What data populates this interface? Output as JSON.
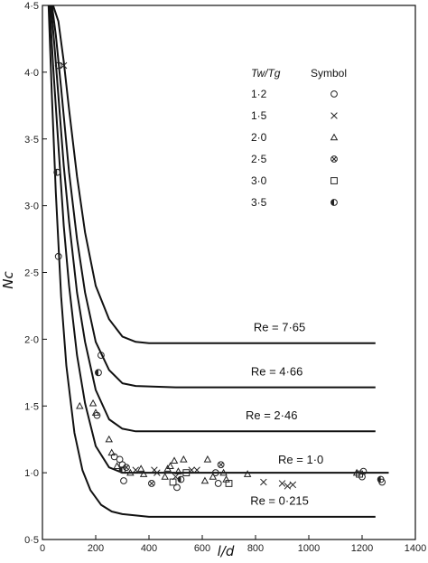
{
  "chart_data": {
    "type": "line",
    "xlabel": "l/d",
    "ylabel": "Nc",
    "xlim": [
      0,
      1400
    ],
    "ylim": [
      0.5,
      4.5
    ],
    "x_ticks": [
      0,
      200,
      400,
      600,
      800,
      1000,
      1200,
      1400
    ],
    "y_ticks": [
      0.5,
      1.0,
      1.5,
      2.0,
      2.5,
      3.0,
      3.5,
      4.0,
      4.5
    ],
    "x_tick_labels": [
      "0",
      "200",
      "400",
      "600",
      "800",
      "1000",
      "1200",
      "1400"
    ],
    "y_tick_labels": [
      "0·5",
      "1·0",
      "1·5",
      "2·0",
      "2·5",
      "3·0",
      "3·5",
      "4·0",
      "4·5"
    ],
    "grid": false,
    "legend_position": "top-right",
    "legend_header_ratio": "Tw/Tg",
    "legend_header_symbol": "Symbol",
    "series": [
      {
        "name": "Re = 7·65",
        "label": "Re = 7·65",
        "asymptote": 1.97,
        "x": [
          40,
          60,
          80,
          100,
          130,
          160,
          200,
          250,
          300,
          350,
          400,
          500,
          800,
          1100,
          1250
        ],
        "y": [
          4.5,
          4.38,
          4.08,
          3.72,
          3.22,
          2.8,
          2.4,
          2.15,
          2.02,
          1.98,
          1.97,
          1.97,
          1.97,
          1.97,
          1.97
        ]
      },
      {
        "name": "Re = 4·66",
        "label": "Re = 4·66",
        "asymptote": 1.64,
        "x": [
          36,
          50,
          70,
          100,
          130,
          160,
          200,
          250,
          300,
          350,
          500,
          800,
          1100,
          1250
        ],
        "y": [
          4.5,
          4.28,
          3.88,
          3.25,
          2.75,
          2.35,
          1.98,
          1.77,
          1.67,
          1.65,
          1.64,
          1.64,
          1.64,
          1.64
        ]
      },
      {
        "name": "Re = 2·46",
        "label": "Re = 2·46",
        "asymptote": 1.31,
        "x": [
          32,
          45,
          60,
          80,
          100,
          130,
          160,
          200,
          250,
          300,
          350,
          500,
          800,
          1100,
          1250
        ],
        "y": [
          4.5,
          4.2,
          3.82,
          3.3,
          2.88,
          2.35,
          1.98,
          1.62,
          1.4,
          1.33,
          1.31,
          1.31,
          1.31,
          1.31,
          1.31
        ]
      },
      {
        "name": "Re = 1·0",
        "label": "Re = 1·0",
        "asymptote": 1.0,
        "x": [
          27,
          40,
          60,
          80,
          100,
          130,
          160,
          200,
          250,
          300,
          350,
          500,
          800,
          1100,
          1300
        ],
        "y": [
          4.5,
          4.05,
          3.45,
          2.85,
          2.4,
          1.88,
          1.52,
          1.2,
          1.04,
          1.0,
          1.0,
          1.0,
          1.0,
          1.0,
          1.0
        ]
      },
      {
        "name": "Re = 0·215",
        "label": "Re = 0·215",
        "asymptote": 0.67,
        "x": [
          23,
          35,
          50,
          70,
          90,
          120,
          150,
          180,
          220,
          260,
          300,
          350,
          400,
          600,
          900,
          1200,
          1250
        ],
        "y": [
          4.5,
          3.85,
          3.1,
          2.32,
          1.8,
          1.3,
          1.02,
          0.87,
          0.76,
          0.71,
          0.69,
          0.68,
          0.67,
          0.67,
          0.67,
          0.67,
          0.67
        ]
      }
    ],
    "legend": [
      {
        "ratio": "1·2",
        "symbol": "circle",
        "symbol_name": "circle-symbol"
      },
      {
        "ratio": "1·5",
        "symbol": "cross",
        "symbol_name": "cross-symbol"
      },
      {
        "ratio": "2·0",
        "symbol": "triangle",
        "symbol_name": "triangle-symbol"
      },
      {
        "ratio": "2·5",
        "symbol": "circle-cross",
        "symbol_name": "circle-x-symbol"
      },
      {
        "ratio": "3·0",
        "symbol": "square",
        "symbol_name": "square-symbol"
      },
      {
        "ratio": "3·5",
        "symbol": "half-circle",
        "symbol_name": "half-filled-circle-symbol"
      }
    ],
    "points": [
      {
        "x": 60,
        "y": 4.05,
        "s": "circle"
      },
      {
        "x": 80,
        "y": 4.05,
        "s": "cross"
      },
      {
        "x": 55,
        "y": 3.25,
        "s": "half-circle"
      },
      {
        "x": 60,
        "y": 2.62,
        "s": "circle"
      },
      {
        "x": 220,
        "y": 1.88,
        "s": "circle"
      },
      {
        "x": 210,
        "y": 1.75,
        "s": "half-circle"
      },
      {
        "x": 140,
        "y": 1.5,
        "s": "triangle"
      },
      {
        "x": 190,
        "y": 1.52,
        "s": "triangle"
      },
      {
        "x": 200,
        "y": 1.45,
        "s": "triangle"
      },
      {
        "x": 205,
        "y": 1.43,
        "s": "circle"
      },
      {
        "x": 250,
        "y": 1.25,
        "s": "triangle"
      },
      {
        "x": 260,
        "y": 1.15,
        "s": "triangle"
      },
      {
        "x": 270,
        "y": 1.12,
        "s": "circle"
      },
      {
        "x": 280,
        "y": 1.05,
        "s": "triangle"
      },
      {
        "x": 290,
        "y": 1.1,
        "s": "circle"
      },
      {
        "x": 300,
        "y": 1.06,
        "s": "circle"
      },
      {
        "x": 300,
        "y": 1.02,
        "s": "half-circle"
      },
      {
        "x": 305,
        "y": 0.94,
        "s": "circle"
      },
      {
        "x": 315,
        "y": 1.04,
        "s": "circle-cross"
      },
      {
        "x": 330,
        "y": 1.0,
        "s": "triangle"
      },
      {
        "x": 350,
        "y": 1.02,
        "s": "cross"
      },
      {
        "x": 370,
        "y": 1.03,
        "s": "triangle"
      },
      {
        "x": 380,
        "y": 0.99,
        "s": "triangle"
      },
      {
        "x": 410,
        "y": 0.92,
        "s": "circle-cross"
      },
      {
        "x": 420,
        "y": 1.02,
        "s": "cross"
      },
      {
        "x": 430,
        "y": 1.0,
        "s": "cross"
      },
      {
        "x": 460,
        "y": 0.97,
        "s": "triangle"
      },
      {
        "x": 470,
        "y": 1.03,
        "s": "triangle"
      },
      {
        "x": 480,
        "y": 1.05,
        "s": "triangle"
      },
      {
        "x": 490,
        "y": 0.93,
        "s": "square"
      },
      {
        "x": 495,
        "y": 1.09,
        "s": "triangle"
      },
      {
        "x": 500,
        "y": 0.97,
        "s": "cross"
      },
      {
        "x": 505,
        "y": 0.89,
        "s": "circle"
      },
      {
        "x": 510,
        "y": 1.01,
        "s": "triangle"
      },
      {
        "x": 520,
        "y": 0.95,
        "s": "half-circle"
      },
      {
        "x": 530,
        "y": 1.1,
        "s": "triangle"
      },
      {
        "x": 540,
        "y": 1.0,
        "s": "square"
      },
      {
        "x": 560,
        "y": 1.02,
        "s": "cross"
      },
      {
        "x": 580,
        "y": 1.02,
        "s": "cross"
      },
      {
        "x": 610,
        "y": 0.94,
        "s": "triangle"
      },
      {
        "x": 620,
        "y": 1.1,
        "s": "triangle"
      },
      {
        "x": 640,
        "y": 0.97,
        "s": "triangle"
      },
      {
        "x": 650,
        "y": 1.0,
        "s": "circle"
      },
      {
        "x": 660,
        "y": 0.92,
        "s": "circle"
      },
      {
        "x": 670,
        "y": 1.06,
        "s": "circle-cross"
      },
      {
        "x": 680,
        "y": 1.0,
        "s": "triangle"
      },
      {
        "x": 690,
        "y": 0.95,
        "s": "triangle"
      },
      {
        "x": 700,
        "y": 0.92,
        "s": "square"
      },
      {
        "x": 770,
        "y": 0.99,
        "s": "triangle"
      },
      {
        "x": 830,
        "y": 0.93,
        "s": "cross"
      },
      {
        "x": 900,
        "y": 0.92,
        "s": "cross"
      },
      {
        "x": 920,
        "y": 0.9,
        "s": "cross"
      },
      {
        "x": 940,
        "y": 0.91,
        "s": "cross"
      },
      {
        "x": 1180,
        "y": 1.0,
        "s": "triangle"
      },
      {
        "x": 1190,
        "y": 0.99,
        "s": "square"
      },
      {
        "x": 1200,
        "y": 0.97,
        "s": "circle"
      },
      {
        "x": 1205,
        "y": 1.01,
        "s": "circle"
      },
      {
        "x": 1270,
        "y": 0.95,
        "s": "half-circle"
      },
      {
        "x": 1275,
        "y": 0.93,
        "s": "circle"
      }
    ]
  }
}
